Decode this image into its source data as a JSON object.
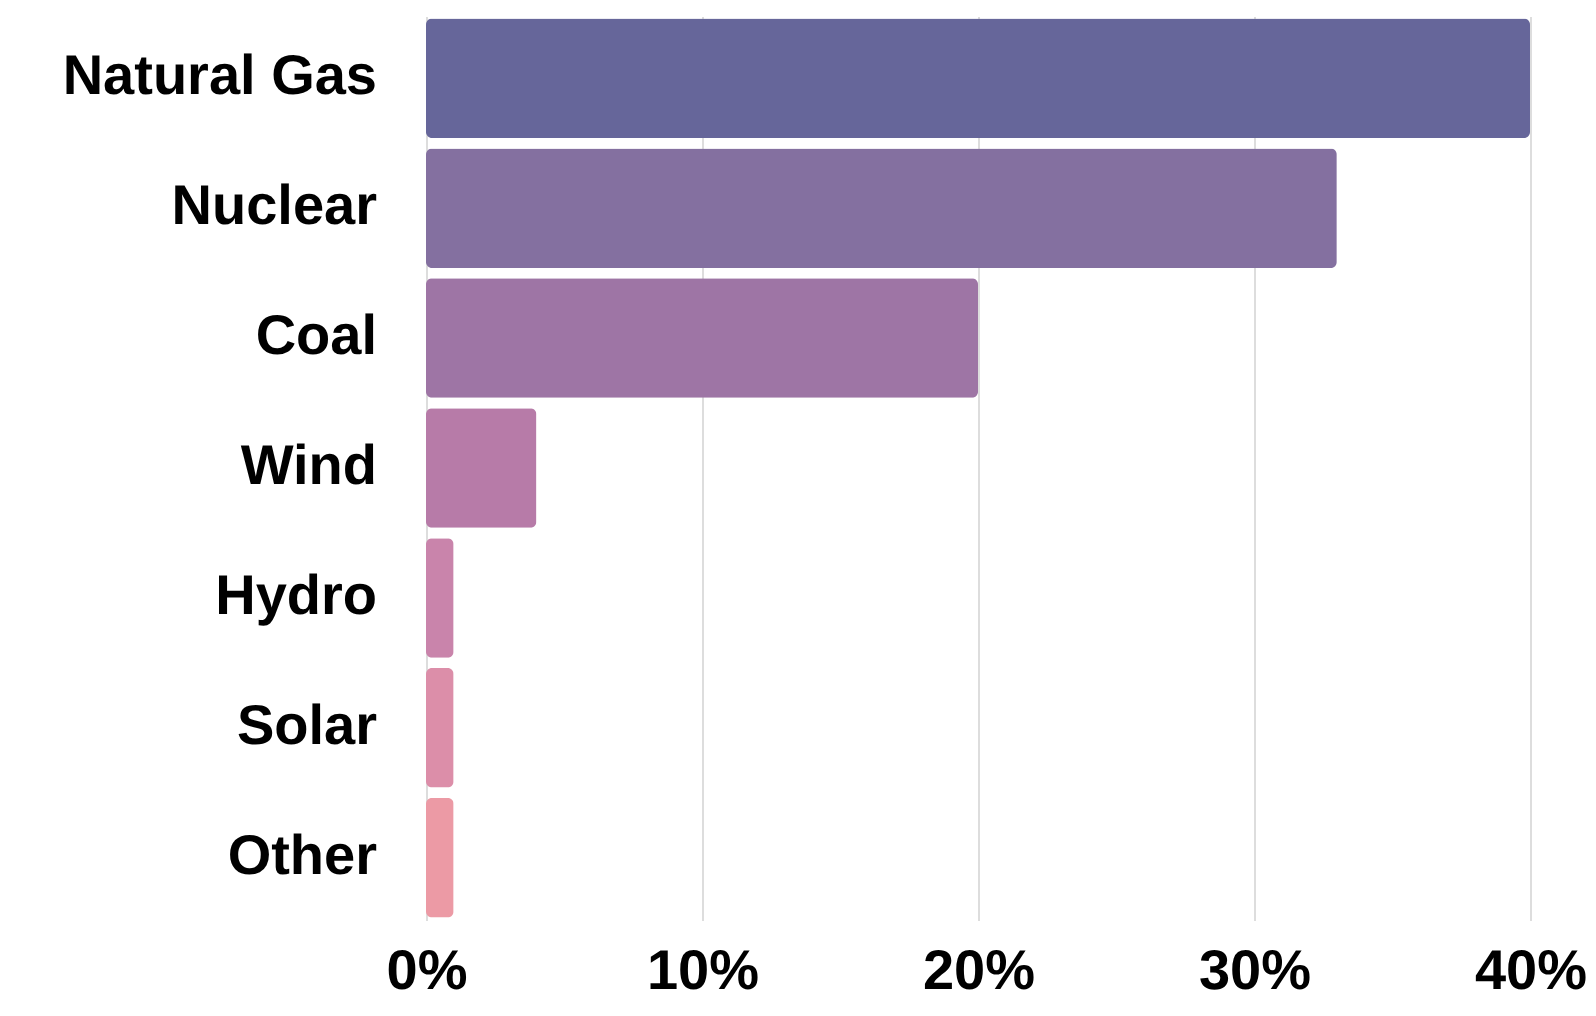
{
  "chart_data": {
    "type": "bar",
    "orientation": "horizontal",
    "categories": [
      "Natural Gas",
      "Nuclear",
      "Coal",
      "Wind",
      "Hydro",
      "Solar",
      "Other"
    ],
    "values": [
      40,
      33,
      20,
      4,
      1,
      1,
      1
    ],
    "colors": [
      "#66669a",
      "#8470a0",
      "#9e75a5",
      "#b77ba8",
      "#c984ab",
      "#dc8ea9",
      "#ec9aa5"
    ],
    "xlim": [
      0,
      40
    ],
    "xticks": [
      {
        "value": 0,
        "label": "0%"
      },
      {
        "value": 10,
        "label": "10%"
      },
      {
        "value": 20,
        "label": "20%"
      },
      {
        "value": 30,
        "label": "30%"
      },
      {
        "value": 40,
        "label": "40%"
      }
    ],
    "grid": "x"
  }
}
